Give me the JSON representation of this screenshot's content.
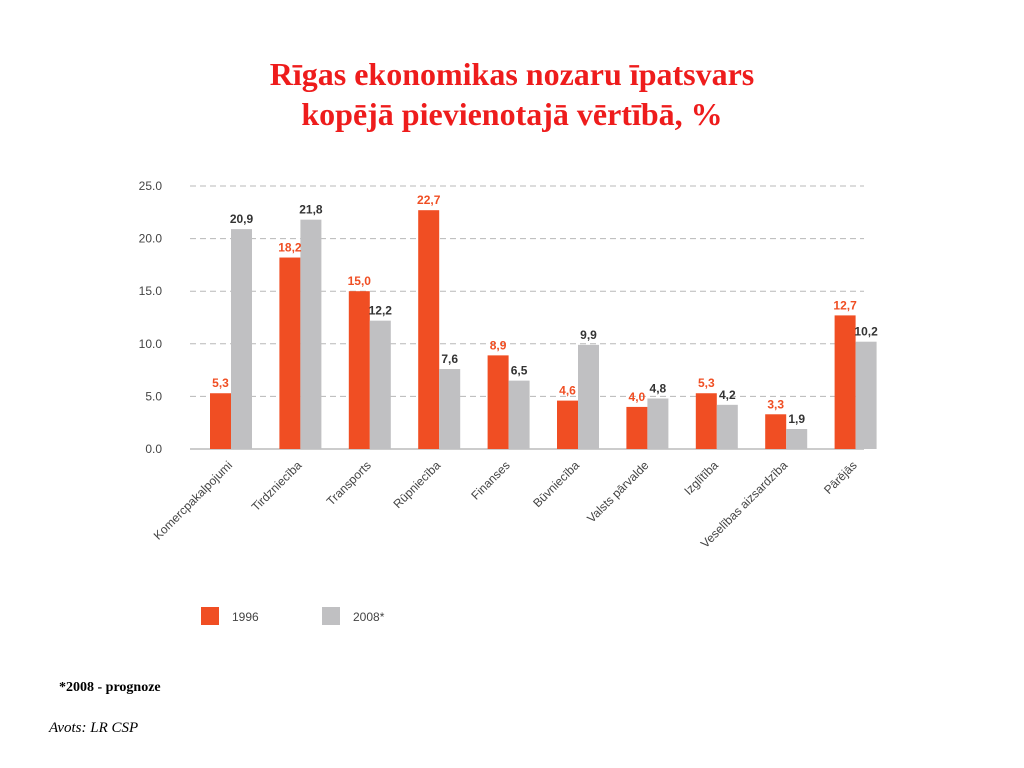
{
  "title": {
    "line1": "Rīgas ekonomikas nozaru īpatsvars",
    "line2": "kopējā pievienotajā vērtībā, %"
  },
  "footnote": "*2008 - prognoze",
  "source": "Avots: LR CSP",
  "chart_data": {
    "type": "bar",
    "categories": [
      "Komercpakalpojumi",
      "Tirdzniecība",
      "Transports",
      "Rūpniecība",
      "Finanses",
      "Būvniecība",
      "Valsts pārvalde",
      "Izglītība",
      "Veselības aizsardzība",
      "Pārējās"
    ],
    "series": [
      {
        "name": "1996",
        "color": "#f04e23",
        "values": [
          5.3,
          18.2,
          15.0,
          22.7,
          8.9,
          4.6,
          4.0,
          5.3,
          3.3,
          12.7
        ],
        "labels": [
          "5,3",
          "18,2",
          "15,0",
          "22,7",
          "8,9",
          "4,6",
          "4,0",
          "5,3",
          "3,3",
          "12,7"
        ]
      },
      {
        "name": "2008*",
        "color": "#c0c0c2",
        "values": [
          20.9,
          21.8,
          12.2,
          7.6,
          6.5,
          9.9,
          4.8,
          4.2,
          1.9,
          10.2
        ],
        "labels": [
          "20,9",
          "21,8",
          "12,2",
          "7,6",
          "6,5",
          "9,9",
          "4,8",
          "4,2",
          "1,9",
          "10,2"
        ]
      }
    ],
    "yticks": [
      "25.0",
      "20.0",
      "15.0",
      "10.0",
      "5.0",
      "0.0"
    ],
    "ylim": [
      0,
      25
    ],
    "grid": true,
    "legend_position": "bottom-left"
  }
}
